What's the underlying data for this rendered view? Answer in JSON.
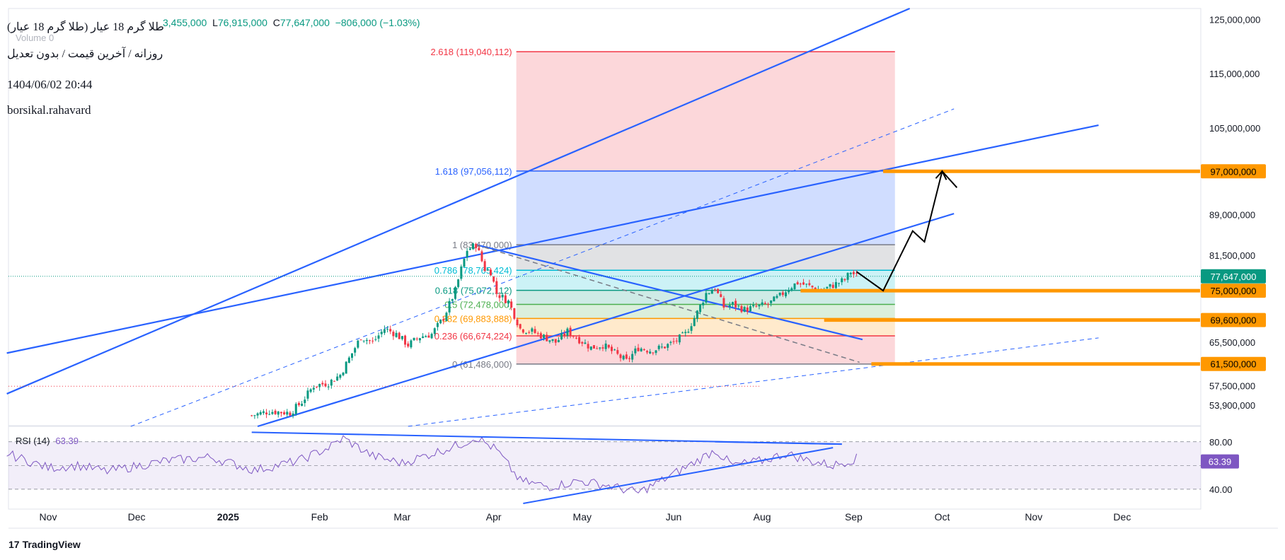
{
  "header": {
    "title": "طلا گرم 18 عیار (طلا گرم 18 عیار)",
    "subtitle": "روزانه / آخرین قیمت / بدون تعدیل",
    "date": "1404/06/02 20:44",
    "author": "borsikal.rahavard",
    "volume_label": "Volume",
    "volume_value": "0",
    "ohlc_partial": "3,455,000",
    "low_label": "L",
    "low_value": "76,915,000",
    "close_label": "C",
    "close_value": "77,647,000",
    "change": "−806,000 (−1.03%)"
  },
  "brand": {
    "logo": "17",
    "name": "TradingView"
  },
  "colors": {
    "up": "#089981",
    "down": "#f23645",
    "trend": "#2962ff",
    "orange": "#ff9800",
    "rsi": "#7e57c2",
    "fib_top": "#f23645",
    "fib_blue": "#2962ff"
  },
  "chart_data": {
    "type": "candlestick",
    "title": "طلا گرم 18 عیار",
    "ylim": [
      50000000,
      127000000
    ],
    "y_ticks": [
      {
        "value": 125000000,
        "label": "125,000,000"
      },
      {
        "value": 115000000,
        "label": "115,000,000"
      },
      {
        "value": 105000000,
        "label": "105,000,000"
      },
      {
        "value": 89000000,
        "label": "89,000,000"
      },
      {
        "value": 81500000,
        "label": "81,500,000"
      },
      {
        "value": 65500000,
        "label": "65,500,000"
      },
      {
        "value": 57500000,
        "label": "57,500,000"
      },
      {
        "value": 53900000,
        "label": "53,900,000"
      }
    ],
    "x_ticks": [
      {
        "day": 0,
        "label": "Nov",
        "bold": false
      },
      {
        "day": 30,
        "label": "Dec",
        "bold": false
      },
      {
        "day": 61,
        "label": "2025",
        "bold": true
      },
      {
        "day": 92,
        "label": "Feb",
        "bold": false
      },
      {
        "day": 120,
        "label": "Mar",
        "bold": false
      },
      {
        "day": 151,
        "label": "Apr",
        "bold": false
      },
      {
        "day": 181,
        "label": "May",
        "bold": false
      },
      {
        "day": 212,
        "label": "Jun",
        "bold": false
      },
      {
        "day": 242,
        "label": "Aug",
        "bold": false
      },
      {
        "day": 273,
        "label": "Sep",
        "bold": false
      },
      {
        "day": 303,
        "label": "Oct",
        "bold": false
      },
      {
        "day": 334,
        "label": "Nov",
        "bold": false
      },
      {
        "day": 364,
        "label": "Dec",
        "bold": false
      }
    ],
    "price_path": [
      [
        69,
        52000000
      ],
      [
        75,
        52800000
      ],
      [
        82,
        52500000
      ],
      [
        86,
        54500000
      ],
      [
        90,
        57500000
      ],
      [
        95,
        58000000
      ],
      [
        99,
        59500000
      ],
      [
        104,
        64500000
      ],
      [
        106,
        66500000
      ],
      [
        110,
        65500000
      ],
      [
        114,
        68000000
      ],
      [
        118,
        67000000
      ],
      [
        122,
        65000000
      ],
      [
        126,
        66500000
      ],
      [
        130,
        67000000
      ],
      [
        134,
        70000000
      ],
      [
        138,
        75000000
      ],
      [
        140,
        79000000
      ],
      [
        142,
        82500000
      ],
      [
        145,
        83470000
      ],
      [
        148,
        79000000
      ],
      [
        150,
        78500000
      ],
      [
        152,
        74500000
      ],
      [
        156,
        73000000
      ],
      [
        160,
        68000000
      ],
      [
        164,
        67500000
      ],
      [
        168,
        66500000
      ],
      [
        172,
        65500000
      ],
      [
        176,
        67500000
      ],
      [
        180,
        66000000
      ],
      [
        184,
        64500000
      ],
      [
        188,
        65000000
      ],
      [
        192,
        63500000
      ],
      [
        196,
        62000000
      ],
      [
        200,
        64500000
      ],
      [
        204,
        64000000
      ],
      [
        208,
        64500000
      ],
      [
        212,
        65500000
      ],
      [
        216,
        67000000
      ],
      [
        220,
        71000000
      ],
      [
        223,
        74500000
      ],
      [
        226,
        75500000
      ],
      [
        229,
        72000000
      ],
      [
        232,
        72500000
      ],
      [
        236,
        71500000
      ],
      [
        240,
        72000000
      ],
      [
        244,
        72500000
      ],
      [
        248,
        74000000
      ],
      [
        251,
        75500000
      ],
      [
        254,
        76500000
      ],
      [
        258,
        75800000
      ],
      [
        262,
        75000000
      ],
      [
        266,
        76000000
      ],
      [
        270,
        77000000
      ],
      [
        272,
        78500000
      ],
      [
        274,
        77647000
      ]
    ],
    "fib_levels": [
      {
        "ratio": "0",
        "price": 61486000,
        "label": "0 (61,486,000)"
      },
      {
        "ratio": "0.236",
        "price": 66674224,
        "label": "0.236 (66,674,224)"
      },
      {
        "ratio": "0.382",
        "price": 69883888,
        "label": "0.382 (69,883,888)"
      },
      {
        "ratio": "0.5",
        "price": 72478000,
        "label": "0.5 (72,478,000)"
      },
      {
        "ratio": "0.618",
        "price": 75072112,
        "label": "0.618 (75,072,112)"
      },
      {
        "ratio": "0.786",
        "price": 78765424,
        "label": "0.786 (78,765,424)"
      },
      {
        "ratio": "1",
        "price": 83470000,
        "label": "1 (83,470,000)"
      },
      {
        "ratio": "1.618",
        "price": 97056112,
        "label": "1.618 (97,056,112)"
      },
      {
        "ratio": "2.618",
        "price": 119040112,
        "label": "2.618 (119,040,112)"
      }
    ],
    "fib_range_days": [
      145,
      287
    ],
    "target_levels": [
      {
        "price": 97000000,
        "label": "97,000,000",
        "from_day": 283
      },
      {
        "price": 75000000,
        "label": "75,000,000",
        "from_day": 255
      },
      {
        "price": 69600000,
        "label": "69,600,000",
        "from_day": 263
      },
      {
        "price": 61500000,
        "label": "61,500,000",
        "from_day": 279
      }
    ],
    "last_price": {
      "price": 77647000,
      "label": "77,647,000"
    },
    "projection": [
      [
        274,
        78500000
      ],
      [
        283,
        75000000
      ],
      [
        293,
        86000000
      ],
      [
        297,
        84000000
      ],
      [
        303,
        97000000
      ],
      [
        308,
        94000000
      ]
    ],
    "rsi": {
      "label": "RSI (14)",
      "value": "63.39",
      "value_num": 63.39,
      "levels": [
        {
          "value": 80,
          "label": "80.00"
        },
        {
          "value": 40,
          "label": "40.00"
        }
      ],
      "range": [
        28,
        90
      ]
    }
  }
}
